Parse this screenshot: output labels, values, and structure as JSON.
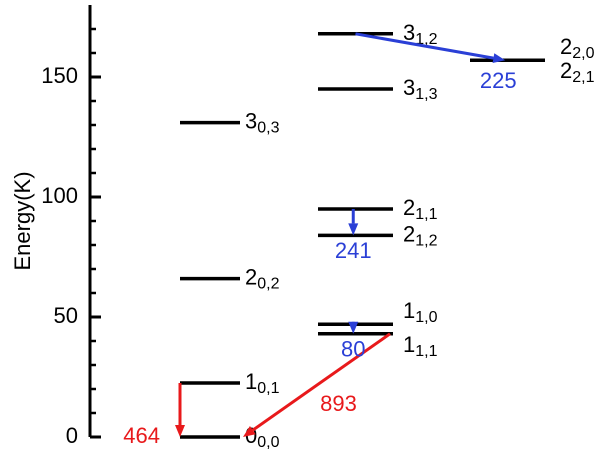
{
  "chart_data": {
    "type": "energy-level",
    "y_label": "Energy(K)",
    "ylim": [
      0,
      180
    ],
    "yticks": [
      0,
      50,
      100,
      150
    ],
    "minor_yticks": [
      10,
      20,
      30,
      40,
      60,
      70,
      80,
      90,
      110,
      120,
      130,
      140,
      160,
      170
    ],
    "columns": [
      [
        {
          "label": "0",
          "sub": "0,0",
          "energy": 0
        },
        {
          "label": "1",
          "sub": "0,1",
          "energy": 22.5
        },
        {
          "label": "2",
          "sub": "0,2",
          "energy": 66
        },
        {
          "label": "3",
          "sub": "0,3",
          "energy": 131
        }
      ],
      [
        {
          "label": "1",
          "sub": "1,0",
          "energy": 47
        },
        {
          "label": "1",
          "sub": "1,1",
          "energy": 43
        },
        {
          "label": "2",
          "sub": "1,1",
          "energy": 95
        },
        {
          "label": "2",
          "sub": "1,2",
          "energy": 84
        },
        {
          "label": "3",
          "sub": "1,3",
          "energy": 145
        },
        {
          "label": "3",
          "sub": "1,2",
          "energy": 168
        }
      ],
      [
        {
          "label": "2",
          "sub": "2,0",
          "energy": 157
        },
        {
          "label": "2",
          "sub": "2,1",
          "energy": 157
        }
      ]
    ],
    "transitions": [
      {
        "from": [
          0,
          1
        ],
        "to": [
          0,
          0
        ],
        "label": "464",
        "color": "#e8191b"
      },
      {
        "from": [
          1,
          1
        ],
        "to": [
          0,
          0
        ],
        "label": "893",
        "color": "#e8191b"
      },
      {
        "from": [
          1,
          0
        ],
        "to": [
          1,
          1
        ],
        "label": "80",
        "color": "#2a3fd6"
      },
      {
        "from": [
          1,
          2
        ],
        "to": [
          1,
          3
        ],
        "label": "241",
        "color": "#2a3fd6"
      },
      {
        "from": [
          1,
          5
        ],
        "to": [
          2,
          0
        ],
        "label": "225",
        "color": "#2a3fd6"
      }
    ]
  }
}
